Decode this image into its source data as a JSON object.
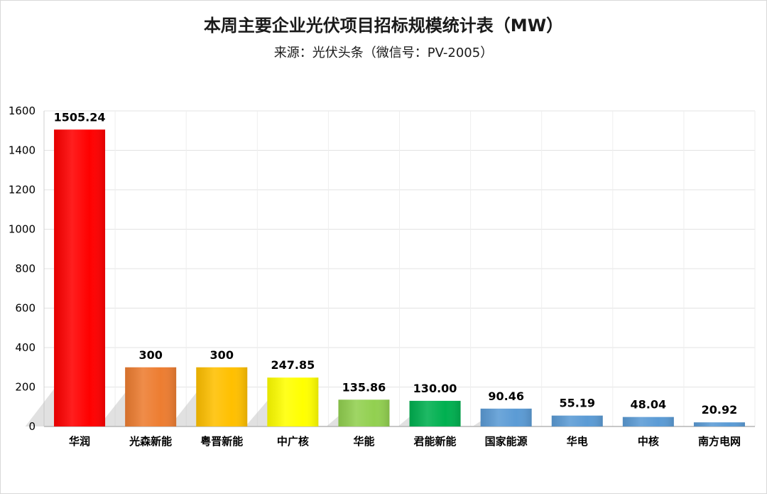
{
  "chart_data": {
    "type": "bar",
    "title": "本周主要企业光伏项目招标规模统计表（MW）",
    "subtitle": "来源：光伏头条（微信号：PV-2005）",
    "categories": [
      "华润",
      "光森新能",
      "粤晋新能",
      "中广核",
      "华能",
      "君能新能",
      "国家能源",
      "华电",
      "中核",
      "南方电网"
    ],
    "values": [
      1505.24,
      300,
      300,
      247.85,
      135.86,
      130.0,
      90.46,
      55.19,
      48.04,
      20.92
    ],
    "data_labels": [
      "1505.24",
      "300",
      "300",
      "247.85",
      "135.86",
      "130.00",
      "90.46",
      "55.19",
      "48.04",
      "20.92"
    ],
    "colors": [
      "#ff0000",
      "#ed7d31",
      "#ffc000",
      "#ffff00",
      "#92d050",
      "#00b050",
      "#5b9bd5",
      "#5b9bd5",
      "#5b9bd5",
      "#5b9bd5"
    ],
    "ylim": [
      0,
      1600
    ],
    "yticks": [
      0,
      200,
      400,
      600,
      800,
      1000,
      1200,
      1400,
      1600
    ],
    "grid": true,
    "legend": "none"
  }
}
